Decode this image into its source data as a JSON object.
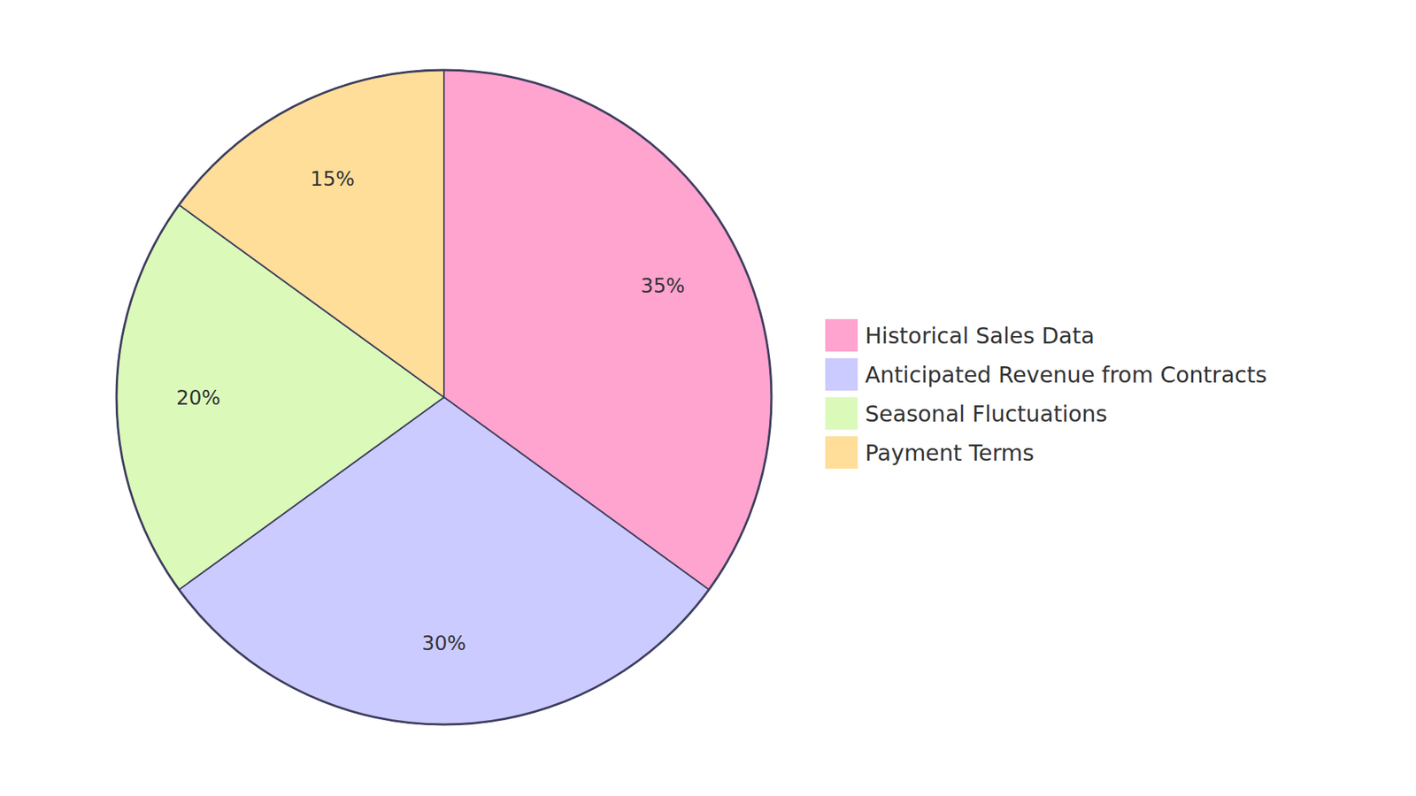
{
  "chart_data": {
    "type": "pie",
    "categories": [
      "Historical Sales Data",
      "Anticipated Revenue from Contracts",
      "Seasonal Fluctuations",
      "Payment Terms"
    ],
    "values": [
      35,
      30,
      20,
      15
    ],
    "value_labels": [
      "35%",
      "30%",
      "20%",
      "15%"
    ],
    "colors": [
      "#ffa3cf",
      "#cbcbff",
      "#dbfaba",
      "#ffde99"
    ],
    "data_labels": true,
    "legend": "right"
  }
}
